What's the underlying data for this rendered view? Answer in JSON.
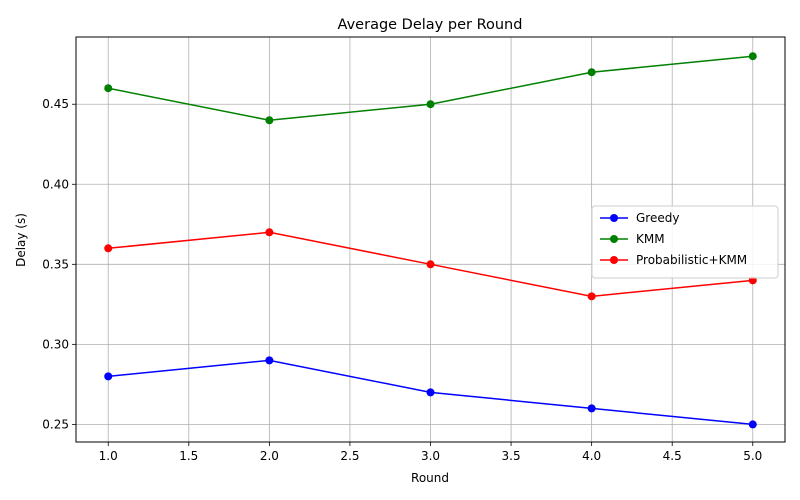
{
  "chart_data": {
    "type": "line",
    "title": "Average Delay per Round",
    "xlabel": "Round",
    "ylabel": "Delay (s)",
    "xlim": [
      0.8,
      5.2
    ],
    "ylim": [
      0.239,
      0.492
    ],
    "xticks": [
      "1.0",
      "1.5",
      "2.0",
      "2.5",
      "3.0",
      "3.5",
      "4.0",
      "4.5",
      "5.0"
    ],
    "yticks": [
      "0.25",
      "0.30",
      "0.35",
      "0.40",
      "0.45"
    ],
    "grid": true,
    "legend_position": "center-right",
    "x": [
      1,
      2,
      3,
      4,
      5
    ],
    "series": [
      {
        "name": "Greedy",
        "color": "#0000ff",
        "values": [
          0.28,
          0.29,
          0.27,
          0.26,
          0.25
        ]
      },
      {
        "name": "KMM",
        "color": "#008000",
        "values": [
          0.46,
          0.44,
          0.45,
          0.47,
          0.48
        ]
      },
      {
        "name": "Probabilistic+KMM",
        "color": "#ff0000",
        "values": [
          0.36,
          0.37,
          0.35,
          0.33,
          0.34
        ]
      }
    ]
  }
}
